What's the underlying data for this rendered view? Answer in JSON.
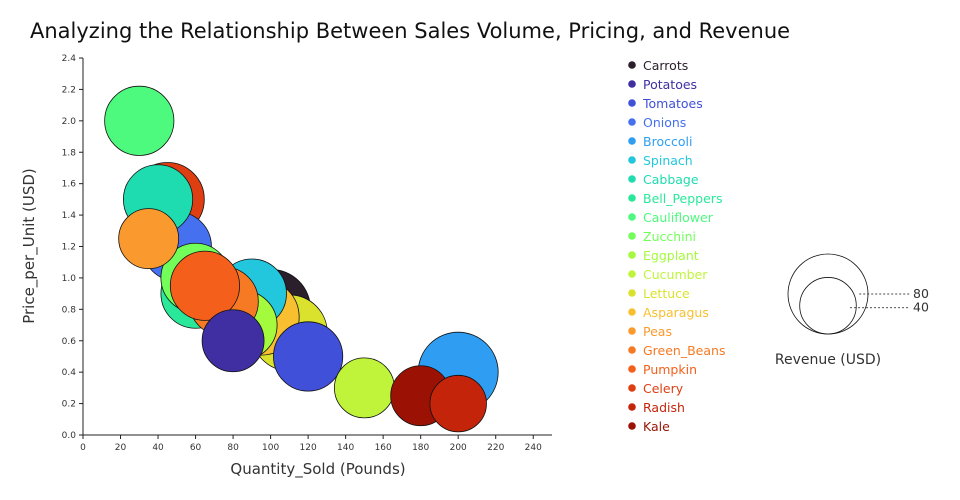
{
  "chart_data": {
    "type": "scatter",
    "title": "Analyzing the Relationship Between Sales Volume, Pricing, and Revenue",
    "xlabel": "Quantity_Sold (Pounds)",
    "ylabel": "Price_per_Unit (USD)",
    "xlim": [
      0,
      250
    ],
    "ylim": [
      0,
      2.4
    ],
    "x_ticks": [
      0,
      20,
      40,
      60,
      80,
      100,
      120,
      140,
      160,
      180,
      200,
      220,
      240
    ],
    "y_ticks": [
      "0.0",
      "0.2",
      "0.4",
      "0.6",
      "0.8",
      "1.0",
      "1.2",
      "1.4",
      "1.6",
      "1.8",
      "2.0",
      "2.2",
      "2.4"
    ],
    "grid": false,
    "legend_position": "right",
    "size_legend": {
      "title": "Revenue (USD)",
      "values": [
        80,
        40
      ]
    },
    "series": [
      {
        "name": "Carrots",
        "x": 100,
        "y": 0.8,
        "size": 80,
        "color": "#2a1f2a"
      },
      {
        "name": "Potatoes",
        "x": 80,
        "y": 0.6,
        "size": 48,
        "color": "#3f2fa3"
      },
      {
        "name": "Tomatoes",
        "x": 120,
        "y": 0.5,
        "size": 60,
        "color": "#4150d8"
      },
      {
        "name": "Onions",
        "x": 50,
        "y": 1.2,
        "size": 60,
        "color": "#4570f0"
      },
      {
        "name": "Broccoli",
        "x": 200,
        "y": 0.4,
        "size": 80,
        "color": "#2f9ef2"
      },
      {
        "name": "Spinach",
        "x": 90,
        "y": 0.9,
        "size": 60,
        "color": "#22c7dd"
      },
      {
        "name": "Cabbage",
        "x": 40,
        "y": 1.5,
        "size": 60,
        "color": "#1fdbb0"
      },
      {
        "name": "Bell_Peppers",
        "x": 60,
        "y": 0.9,
        "size": 60,
        "color": "#2ae89a"
      },
      {
        "name": "Cauliflower",
        "x": 30,
        "y": 2.0,
        "size": 60,
        "color": "#4dfa7e"
      },
      {
        "name": "Zucchini",
        "x": 60,
        "y": 1.0,
        "size": 60,
        "color": "#72ff5a"
      },
      {
        "name": "Eggplant",
        "x": 85,
        "y": 0.7,
        "size": 60,
        "color": "#a4fa3c"
      },
      {
        "name": "Cucumber",
        "x": 150,
        "y": 0.3,
        "size": 45,
        "color": "#bff43b"
      },
      {
        "name": "Lettuce",
        "x": 110,
        "y": 0.65,
        "size": 72,
        "color": "#dbe22e"
      },
      {
        "name": "Asparagus",
        "x": 95,
        "y": 0.75,
        "size": 72,
        "color": "#f8c030"
      },
      {
        "name": "Peas",
        "x": 35,
        "y": 1.25,
        "size": 45,
        "color": "#fa9a2e"
      },
      {
        "name": "Green_Beans",
        "x": 75,
        "y": 0.85,
        "size": 60,
        "color": "#f67a24"
      },
      {
        "name": "Pumpkin",
        "x": 65,
        "y": 0.95,
        "size": 60,
        "color": "#f45f1b"
      },
      {
        "name": "Celery",
        "x": 45,
        "y": 1.5,
        "size": 68,
        "color": "#de3e12"
      },
      {
        "name": "Radish",
        "x": 200,
        "y": 0.2,
        "size": 40,
        "color": "#c4250a"
      },
      {
        "name": "Kale",
        "x": 180,
        "y": 0.25,
        "size": 45,
        "color": "#9b1205"
      }
    ]
  }
}
